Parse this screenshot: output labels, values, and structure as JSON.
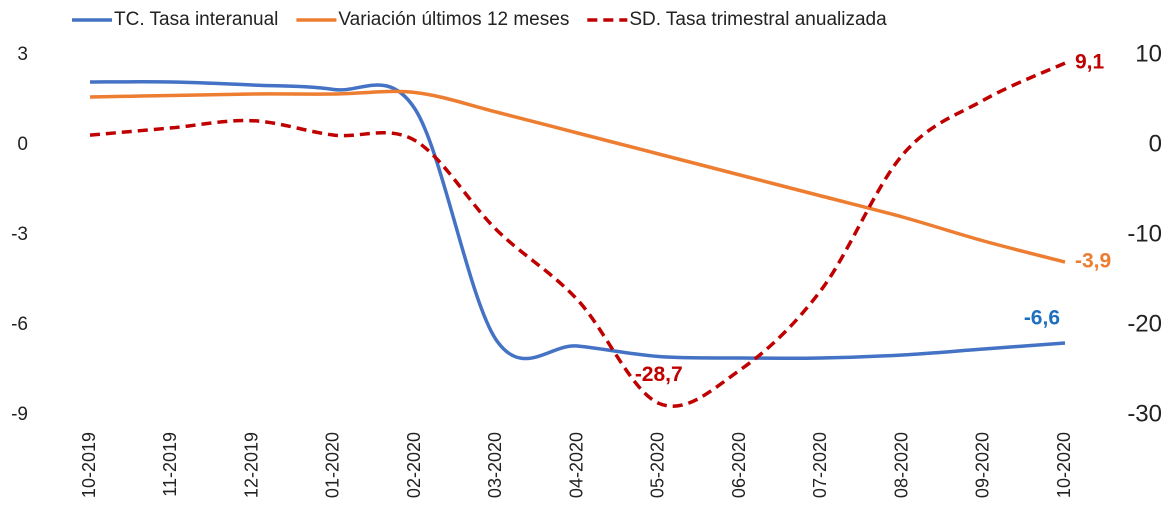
{
  "chart_data": {
    "type": "line",
    "categories": [
      "10-2019",
      "11-2019",
      "12-2019",
      "01-2020",
      "02-2020",
      "03-2020",
      "04-2020",
      "05-2020",
      "06-2020",
      "07-2020",
      "08-2020",
      "09-2020",
      "10-2020"
    ],
    "series": [
      {
        "name": "TC. Tasa interanual",
        "color": "#4472c4",
        "axis": "y",
        "values": [
          2.1,
          2.1,
          2.0,
          1.85,
          1.2,
          -6.5,
          -6.7,
          -7.05,
          -7.1,
          -7.1,
          -7.0,
          -6.8,
          -6.6
        ],
        "value_labels": [
          null,
          null,
          null,
          null,
          null,
          null,
          null,
          null,
          null,
          null,
          null,
          null,
          "-6,6"
        ],
        "label_color": "#1f6fbf"
      },
      {
        "name": "Variación últimos 12 meses",
        "color": "#ed7d31",
        "axis": "y",
        "values": [
          1.6,
          1.65,
          1.7,
          1.7,
          1.75,
          1.1,
          0.4,
          -0.3,
          -1.0,
          -1.7,
          -2.4,
          -3.2,
          -3.9
        ],
        "value_labels": [
          null,
          null,
          null,
          null,
          null,
          null,
          null,
          null,
          null,
          null,
          null,
          null,
          "-3,9"
        ],
        "label_color": "#ed7d31"
      },
      {
        "name": "SD. Tasa trimestral anualizada",
        "color": "#c00000",
        "axis": "y2",
        "dashed": true,
        "values": [
          1.1,
          1.9,
          2.7,
          1.1,
          0.5,
          -9.4,
          -17.2,
          -28.7,
          -25.0,
          -16.1,
          -1.1,
          5.0,
          9.1
        ],
        "value_labels": [
          null,
          null,
          null,
          null,
          null,
          null,
          null,
          "-28,7",
          null,
          null,
          null,
          null,
          "9,1"
        ],
        "label_color": "#c00000"
      }
    ],
    "ylim": [
      -9,
      3
    ],
    "yticks": [
      -9,
      -6,
      -3,
      0,
      3
    ],
    "y2lim": [
      -30,
      10
    ],
    "y2ticks": [
      -30,
      -20,
      -10,
      0,
      10
    ]
  }
}
